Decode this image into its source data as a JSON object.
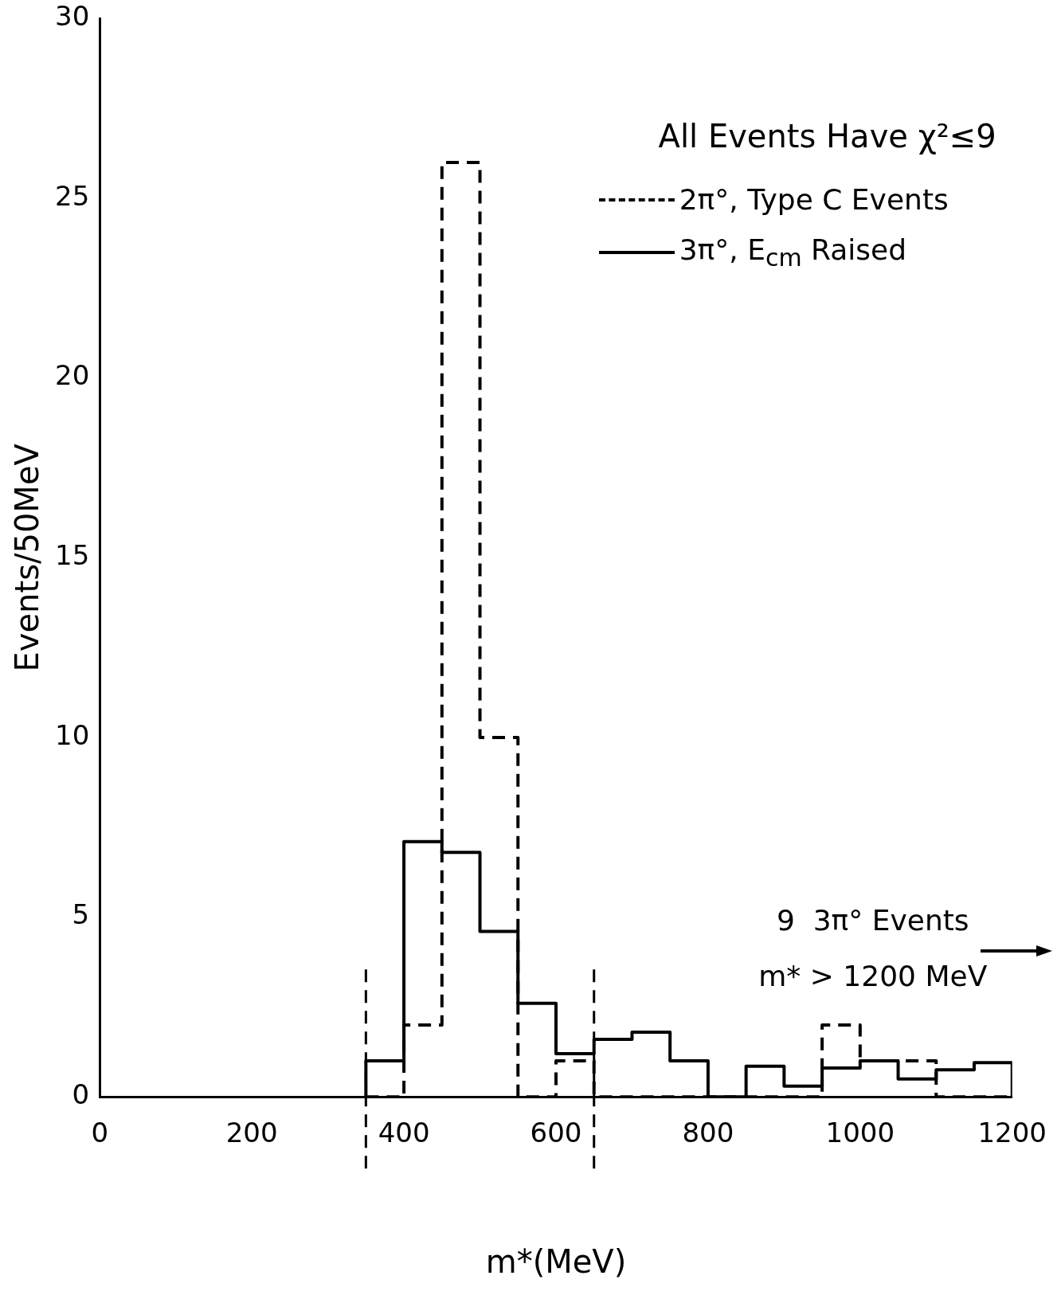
{
  "chart_data": {
    "type": "histogram",
    "title": "All Events Have χ²≤9",
    "xlabel": "m*(MeV)",
    "ylabel": "Events/50MeV",
    "bins": [
      350,
      400,
      450,
      500,
      550,
      600,
      650,
      700,
      750,
      800,
      850,
      900,
      950,
      1000,
      1050,
      1100,
      1150,
      1200
    ],
    "series": [
      {
        "name": "2π°, Type C Events",
        "color": "#000000",
        "line_style": "dashed",
        "values": [
          0,
          2,
          26,
          10,
          0,
          1,
          0,
          0,
          0,
          0,
          0,
          0,
          2,
          1,
          1,
          0,
          0
        ]
      },
      {
        "name": "3π°, E$_{cm}$ Raised",
        "color": "#000000",
        "line_style": "solid",
        "values": [
          1,
          7.1,
          6.8,
          4.6,
          2.6,
          1.2,
          1.6,
          1.8,
          1,
          0,
          0.85,
          0.3,
          0.8,
          1,
          0.5,
          0.75,
          0.95
        ]
      }
    ],
    "xlim": [
      0,
      1200
    ],
    "xticks": [
      0,
      200,
      400,
      600,
      800,
      1000,
      1200
    ],
    "ylim": [
      0,
      30
    ],
    "yticks": [
      0,
      5,
      10,
      15,
      20,
      25,
      30
    ],
    "ref_lines": [
      {
        "axis": "x",
        "value": 350,
        "line_style": "dashed"
      },
      {
        "axis": "x",
        "value": 650,
        "line_style": "dashed"
      }
    ],
    "annotations": [
      "9  3π° Events\nm* > 1200 MeV"
    ],
    "legend": "top right",
    "grid": false
  }
}
